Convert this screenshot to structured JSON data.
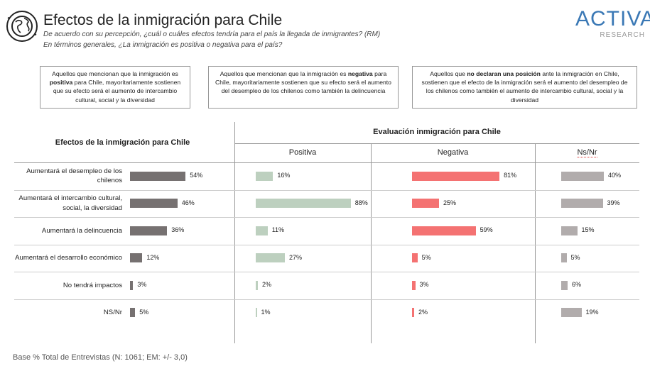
{
  "header": {
    "title": "Efectos de la inmigración para Chile",
    "subtitle1": "De acuerdo con su percepción, ¿cuál o cuáles efectos tendría para el país la llegada de inmigrantes? (RM)",
    "subtitle2": "En términos generales, ¿La inmigración es positiva o negativa para el país?",
    "logo_main": "ACTIVA",
    "logo_sub": "RESEARCH"
  },
  "notes": {
    "positive": {
      "pre": "Aquellos que mencionan que la inmigración es ",
      "bold": "positiva",
      "post": " para Chile, mayoritariamente sostienen que su efecto será el aumento de intercambio cultural, social y la diversidad"
    },
    "negative": {
      "pre": "Aquellos que mencionan que la inmigración es ",
      "bold": "negativa",
      "post": " para Chile, mayoritariamente sostienen que su efecto será el aumento del desempleo de los chilenos como también la delincuencia"
    },
    "nsnr": {
      "pre": "Aquellos que ",
      "bold": "no declaran una posición",
      "post": " ante la inmigración en Chile, sostienen que el efecto de la inmigración será el aumento del desempleo de los chilenos como también el aumento de intercambio cultural, social y la diversidad"
    }
  },
  "chart_data": {
    "type": "bar",
    "orientation": "horizontal",
    "left_title": "Efectos de la inmigración para Chile",
    "group_title": "Evaluación inmigración para Chile",
    "categories": [
      "Aumentará el desempleo de los chilenos",
      "Aumentará el intercambio cultural, social, la diversidad",
      "Aumentará la delincuencia",
      "Aumentará el desarrollo económico",
      "No tendrá impactos",
      "NS/Nr"
    ],
    "series": [
      {
        "name": "",
        "values": [
          54,
          46,
          36,
          12,
          3,
          5
        ]
      },
      {
        "name": "Positiva",
        "values": [
          16,
          88,
          11,
          27,
          2,
          1
        ]
      },
      {
        "name": "Negativa",
        "values": [
          81,
          25,
          59,
          5,
          3,
          2
        ]
      },
      {
        "name": "Ns/Nr",
        "values": [
          40,
          39,
          15,
          5,
          6,
          19
        ]
      }
    ],
    "unit": "%",
    "colors": [
      "#767171",
      "#bdd0bf",
      "#f47272",
      "#b1acac"
    ]
  },
  "footer": {
    "base": "Base % Total de Entrevistas (N: 1061; EM: +/- 3,0)"
  }
}
